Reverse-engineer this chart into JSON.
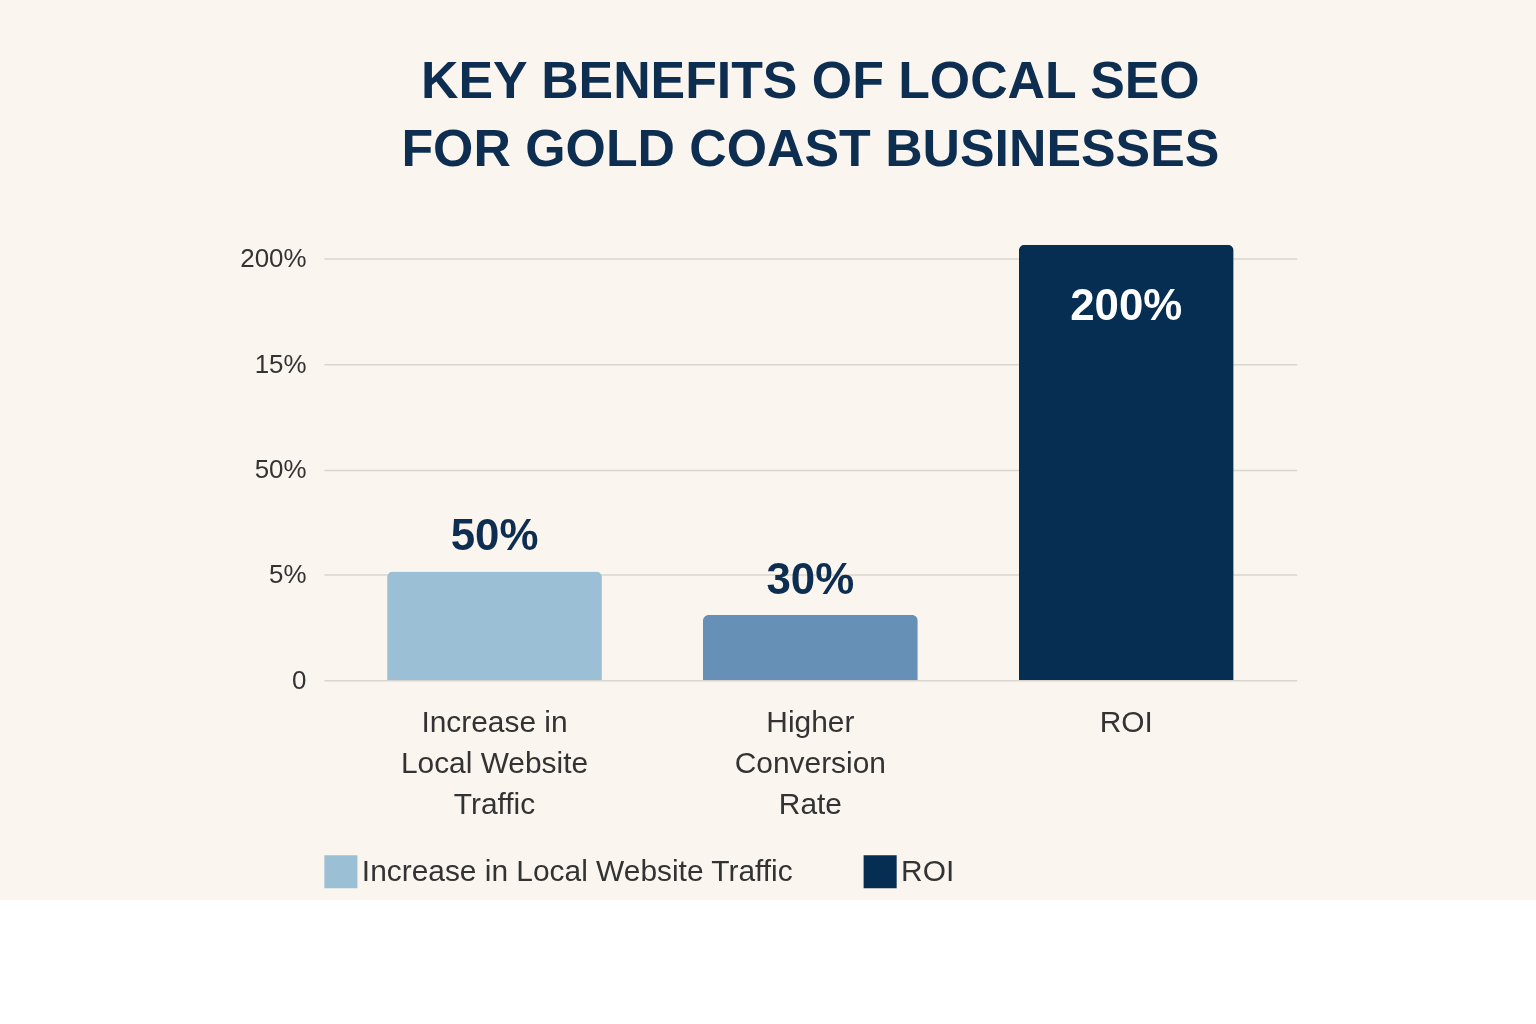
{
  "chart_data": {
    "type": "bar",
    "title": "KEY BENEFITS OF LOCAL SEO FOR GOLD COAST BUSINESSES",
    "categories": [
      "Increase in Local Website Traffic",
      "Higher Conversion Rate",
      "ROI"
    ],
    "series": [
      {
        "name": "Increase in Local Website Traffic",
        "color": "#9bbfd4",
        "values": [
          50,
          null,
          null
        ],
        "value_labels": [
          "50%",
          null,
          null
        ]
      },
      {
        "color": "#6690b5",
        "values": [
          null,
          30,
          null
        ],
        "value_labels": [
          null,
          "30%",
          null
        ]
      },
      {
        "name": "ROI",
        "color": "#062d52",
        "values": [
          null,
          null,
          200
        ],
        "value_labels": [
          null,
          null,
          "200%"
        ]
      }
    ],
    "annotations": [
      "0",
      "5%",
      "50%",
      "15%",
      "200%"
    ],
    "grid": "y",
    "legend": "bottom"
  }
}
